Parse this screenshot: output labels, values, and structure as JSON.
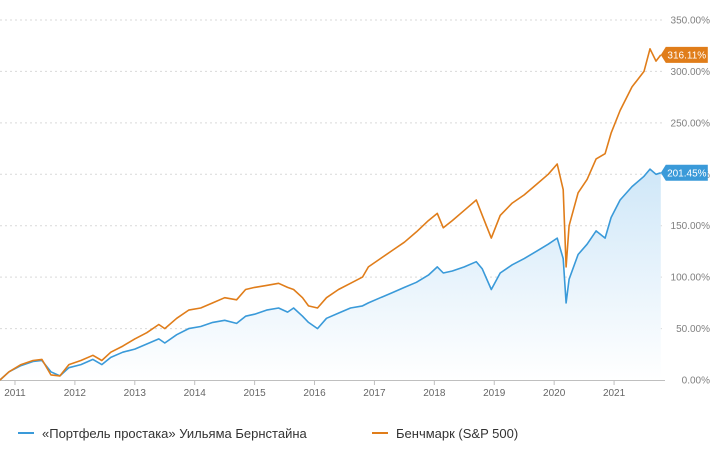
{
  "colors": {
    "portfolio": "#3a9ad9",
    "benchmark": "#e07d1a",
    "area_top": "#cfe7f8",
    "area_bottom": "#ffffff",
    "grid": "#d9d9d9",
    "axis": "#bfbfbf"
  },
  "legend": {
    "portfolio_label": "«Портфель простака» Уильяма Бернстайна",
    "benchmark_label": "Бенчмарк (S&P 500)"
  },
  "chart_data": {
    "type": "line",
    "title": "",
    "xlabel": "",
    "ylabel": "",
    "ylim": [
      0,
      350
    ],
    "xlim": [
      2010.75,
      2021.85
    ],
    "y_ticks": [
      0,
      50,
      100,
      150,
      200,
      250,
      300,
      350
    ],
    "y_tick_labels": [
      "0.00%",
      "50.00%",
      "100.00%",
      "150.00%",
      "200.00%",
      "250.00%",
      "300.00%",
      "350.00%"
    ],
    "x_tick_labels": [
      "2011",
      "2012",
      "2013",
      "2014",
      "2015",
      "2016",
      "2017",
      "2018",
      "2019",
      "2020",
      "2021"
    ],
    "x_ticks": [
      2011,
      2012,
      2013,
      2014,
      2015,
      2016,
      2017,
      2018,
      2019,
      2020,
      2021
    ],
    "grid": true,
    "legend_position": "bottom",
    "series": [
      {
        "name": "«Портфель простака» Уильяма Бернстайна",
        "color": "#3a9ad9",
        "area": true,
        "end_label": "201.45%",
        "x": [
          2010.75,
          2010.9,
          2011.1,
          2011.3,
          2011.45,
          2011.6,
          2011.75,
          2011.9,
          2012.1,
          2012.3,
          2012.45,
          2012.6,
          2012.8,
          2013.0,
          2013.2,
          2013.4,
          2013.5,
          2013.7,
          2013.9,
          2014.1,
          2014.3,
          2014.5,
          2014.7,
          2014.85,
          2015.0,
          2015.2,
          2015.4,
          2015.55,
          2015.65,
          2015.8,
          2015.9,
          2016.05,
          2016.2,
          2016.4,
          2016.6,
          2016.8,
          2016.9,
          2017.1,
          2017.3,
          2017.5,
          2017.7,
          2017.9,
          2018.05,
          2018.15,
          2018.3,
          2018.5,
          2018.7,
          2018.8,
          2018.95,
          2019.1,
          2019.3,
          2019.5,
          2019.7,
          2019.9,
          2020.05,
          2020.15,
          2020.2,
          2020.25,
          2020.4,
          2020.55,
          2020.7,
          2020.85,
          2020.95,
          2021.1,
          2021.3,
          2021.5,
          2021.6,
          2021.7,
          2021.78
        ],
        "values": [
          0,
          8,
          14,
          18,
          19,
          8,
          4,
          12,
          15,
          20,
          15,
          22,
          27,
          30,
          35,
          40,
          36,
          44,
          50,
          52,
          56,
          58,
          55,
          62,
          64,
          68,
          70,
          66,
          70,
          62,
          56,
          50,
          60,
          65,
          70,
          72,
          75,
          80,
          85,
          90,
          95,
          102,
          110,
          104,
          106,
          110,
          115,
          108,
          88,
          104,
          112,
          118,
          125,
          132,
          138,
          118,
          75,
          98,
          122,
          132,
          145,
          138,
          158,
          175,
          188,
          198,
          205,
          200,
          201.45
        ]
      },
      {
        "name": "Бенчмарк (S&P 500)",
        "color": "#e07d1a",
        "area": false,
        "end_label": "316.11%",
        "x": [
          2010.75,
          2010.9,
          2011.1,
          2011.3,
          2011.45,
          2011.6,
          2011.75,
          2011.9,
          2012.1,
          2012.3,
          2012.45,
          2012.6,
          2012.8,
          2013.0,
          2013.2,
          2013.4,
          2013.5,
          2013.7,
          2013.9,
          2014.1,
          2014.3,
          2014.5,
          2014.7,
          2014.85,
          2015.0,
          2015.2,
          2015.4,
          2015.55,
          2015.65,
          2015.8,
          2015.9,
          2016.05,
          2016.2,
          2016.4,
          2016.6,
          2016.8,
          2016.9,
          2017.1,
          2017.3,
          2017.5,
          2017.7,
          2017.9,
          2018.05,
          2018.15,
          2018.3,
          2018.5,
          2018.7,
          2018.8,
          2018.95,
          2019.1,
          2019.3,
          2019.5,
          2019.7,
          2019.9,
          2020.05,
          2020.15,
          2020.2,
          2020.25,
          2020.4,
          2020.55,
          2020.7,
          2020.85,
          2020.95,
          2021.1,
          2021.3,
          2021.5,
          2021.6,
          2021.7,
          2021.78
        ],
        "values": [
          0,
          8,
          15,
          19,
          20,
          5,
          4,
          15,
          19,
          24,
          19,
          27,
          33,
          40,
          46,
          54,
          50,
          60,
          68,
          70,
          75,
          80,
          78,
          88,
          90,
          92,
          94,
          90,
          88,
          80,
          72,
          70,
          80,
          88,
          94,
          100,
          110,
          118,
          126,
          134,
          144,
          155,
          162,
          148,
          155,
          165,
          175,
          160,
          138,
          160,
          172,
          180,
          190,
          200,
          210,
          185,
          110,
          150,
          182,
          195,
          215,
          220,
          240,
          262,
          285,
          300,
          322,
          310,
          316.11
        ]
      }
    ]
  }
}
